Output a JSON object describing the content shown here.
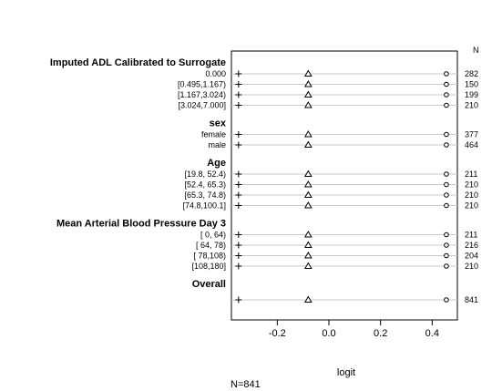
{
  "chart_data": {
    "type": "dotchart",
    "n_column_header": "N",
    "xlabel": "logit",
    "xlim": [
      -0.36,
      0.48
    ],
    "xticks": [
      -0.2,
      0.0,
      0.2,
      0.4
    ],
    "xtick_labels": [
      "-0.2",
      "0.0",
      "0.2",
      "0.4"
    ],
    "footer": "N=841",
    "groups": [
      {
        "title": "Imputed ADL Calibrated to Surrogate",
        "rows": [
          {
            "label": "0.000",
            "n": "282",
            "plus": -0.35,
            "triangle": -0.08,
            "circle": 0.455
          },
          {
            "label": "[0.495,1.167)",
            "n": "150",
            "plus": -0.35,
            "triangle": -0.08,
            "circle": 0.455
          },
          {
            "label": "[1.167,3.024)",
            "n": "199",
            "plus": -0.35,
            "triangle": -0.08,
            "circle": 0.455
          },
          {
            "label": "[3.024,7.000]",
            "n": "210",
            "plus": -0.35,
            "triangle": -0.08,
            "circle": 0.455
          }
        ]
      },
      {
        "title": "sex",
        "rows": [
          {
            "label": "female",
            "n": "377",
            "plus": -0.35,
            "triangle": -0.08,
            "circle": 0.455
          },
          {
            "label": "male",
            "n": "464",
            "plus": -0.35,
            "triangle": -0.08,
            "circle": 0.455
          }
        ]
      },
      {
        "title": "Age",
        "rows": [
          {
            "label": "[19.8, 52.4)",
            "n": "211",
            "plus": -0.35,
            "triangle": -0.08,
            "circle": 0.455
          },
          {
            "label": "[52.4, 65.3)",
            "n": "210",
            "plus": -0.35,
            "triangle": -0.08,
            "circle": 0.455
          },
          {
            "label": "[65.3, 74.8)",
            "n": "210",
            "plus": -0.35,
            "triangle": -0.08,
            "circle": 0.455
          },
          {
            "label": "[74.8,100.1]",
            "n": "210",
            "plus": -0.35,
            "triangle": -0.08,
            "circle": 0.455
          }
        ]
      },
      {
        "title": "Mean Arterial Blood Pressure Day 3",
        "rows": [
          {
            "label": "[ 0, 64)",
            "n": "211",
            "plus": -0.35,
            "triangle": -0.08,
            "circle": 0.455
          },
          {
            "label": "[ 64, 78)",
            "n": "216",
            "plus": -0.35,
            "triangle": -0.08,
            "circle": 0.455
          },
          {
            "label": "[ 78,108)",
            "n": "204",
            "plus": -0.35,
            "triangle": -0.08,
            "circle": 0.455
          },
          {
            "label": "[108,180]",
            "n": "210",
            "plus": -0.35,
            "triangle": -0.08,
            "circle": 0.455
          }
        ]
      },
      {
        "title": "Overall",
        "rows": [
          {
            "label": "",
            "n": "841",
            "plus": -0.35,
            "triangle": -0.08,
            "circle": 0.455
          }
        ]
      }
    ]
  }
}
